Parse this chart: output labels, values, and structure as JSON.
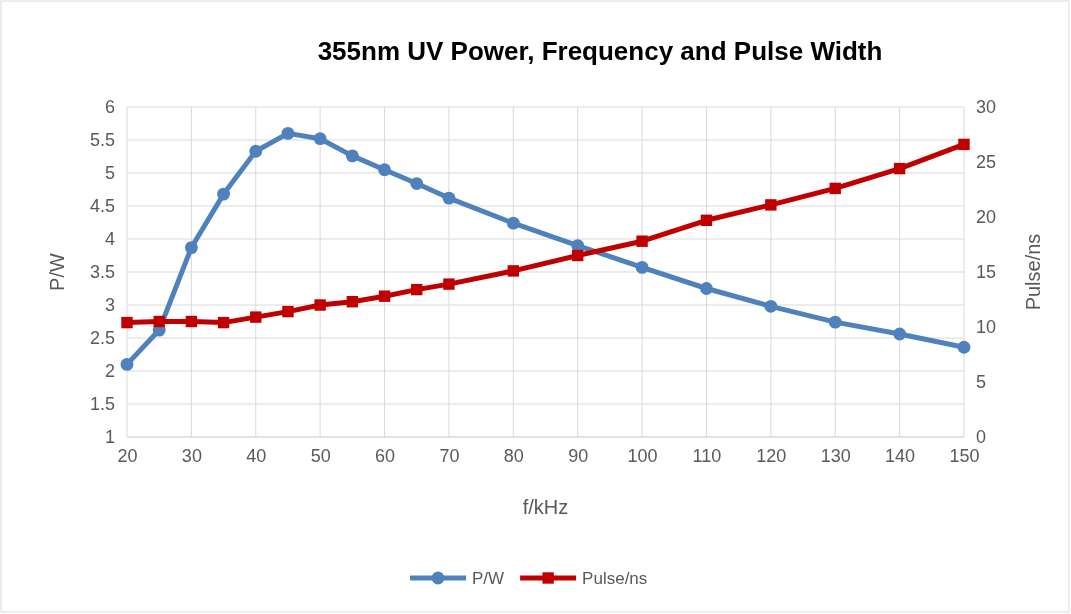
{
  "chart_data": {
    "type": "line",
    "title": "355nm UV Power, Frequency and Pulse Width",
    "xlabel": "f/kHz",
    "ylabel": "P/W",
    "y2label": "Pulse/ns",
    "x": [
      20,
      25,
      30,
      35,
      40,
      45,
      50,
      55,
      60,
      65,
      70,
      80,
      90,
      100,
      110,
      120,
      130,
      140,
      150
    ],
    "series": [
      {
        "name": "P/W",
        "color": "#4f81bd",
        "marker": "circle",
        "values": [
          2.1,
          2.62,
          3.87,
          4.68,
          5.33,
          5.6,
          5.52,
          5.26,
          5.05,
          4.84,
          4.62,
          4.24,
          3.9,
          3.57,
          3.25,
          2.98,
          2.74,
          2.56,
          2.36
        ]
      },
      {
        "name": "Pulse/ns",
        "color": "#c00000",
        "marker": "square",
        "axis": "y2",
        "values": [
          10.4,
          10.5,
          10.5,
          10.4,
          10.9,
          11.4,
          12,
          12.3,
          12.8,
          13.4,
          13.9,
          15.1,
          16.5,
          17.8,
          19.7,
          21.1,
          22.6,
          24.4,
          26.6
        ]
      }
    ],
    "xlim": [
      20,
      150
    ],
    "xticks": [
      20,
      30,
      40,
      50,
      60,
      70,
      80,
      90,
      100,
      110,
      120,
      130,
      140,
      150
    ],
    "ylim": [
      1,
      6
    ],
    "yticks": [
      1,
      1.5,
      2,
      2.5,
      3,
      3.5,
      4,
      4.5,
      5,
      5.5,
      6
    ],
    "y2lim": [
      0,
      30
    ],
    "y2ticks": [
      0,
      5,
      10,
      15,
      20,
      25,
      30
    ],
    "grid": true,
    "legend": "bottom"
  }
}
